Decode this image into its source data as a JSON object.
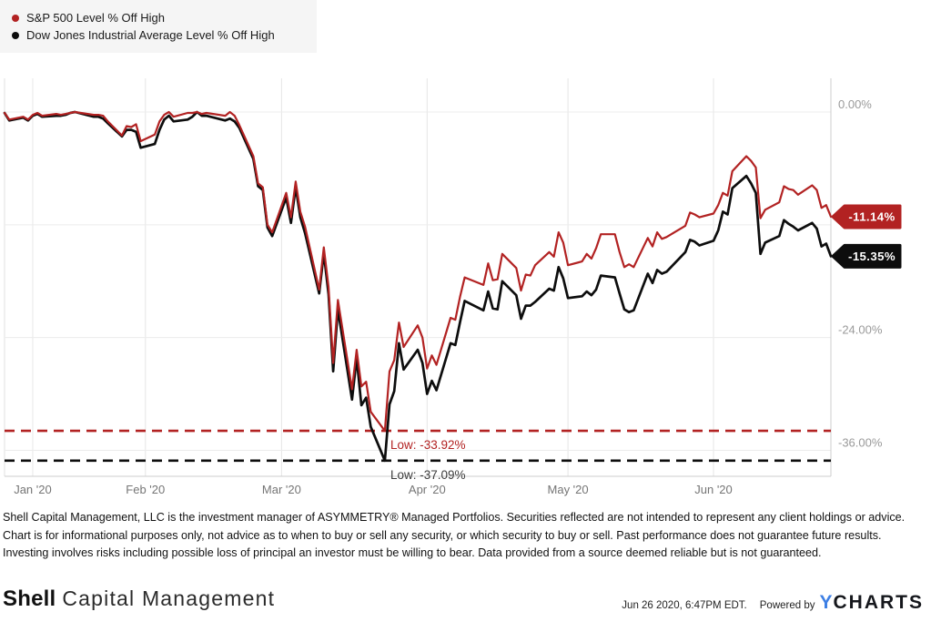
{
  "chart": {
    "legend": [
      {
        "id": "sp500",
        "label": "S&P 500 Level % Off High",
        "color": "#b22222"
      },
      {
        "id": "dow",
        "label": "Dow Jones Industrial Average Level % Off High",
        "color": "#0d0d0d"
      }
    ],
    "end_badges": [
      {
        "id": "sp500",
        "label": "-11.14%",
        "value": -11.14,
        "color": "#b22222"
      },
      {
        "id": "dow",
        "label": "-15.35%",
        "value": -15.35,
        "color": "#0d0d0d"
      }
    ],
    "low_lines": [
      {
        "id": "sp500",
        "label": "Low: -33.92%",
        "value": -33.92,
        "color": "#b22222",
        "text_color": "#b22222"
      },
      {
        "id": "dow",
        "label": "Low: -37.09%",
        "value": -37.09,
        "color": "#0d0d0d",
        "text_color": "#3c3c3c"
      }
    ]
  },
  "chart_data": {
    "type": "line",
    "title": "",
    "xlabel": "",
    "ylabel": "% Off High",
    "x_domain": [
      "2020-01-02",
      "2020-06-26"
    ],
    "ylim": [
      -42,
      3.4
    ],
    "grid": true,
    "legend_position": "top-left",
    "y_ticks": [
      {
        "value": 0,
        "label": "0.00%"
      },
      {
        "value": -12,
        "label": ""
      },
      {
        "value": -24,
        "label": "-24.00%"
      },
      {
        "value": -36,
        "label": "-36.00%"
      }
    ],
    "x_ticks": [
      {
        "date": "2020-01-08",
        "label": "Jan '20"
      },
      {
        "date": "2020-02-01",
        "label": "Feb '20"
      },
      {
        "date": "2020-03-01",
        "label": "Mar '20"
      },
      {
        "date": "2020-04-01",
        "label": "Apr '20"
      },
      {
        "date": "2020-05-01",
        "label": "May '20"
      },
      {
        "date": "2020-06-01",
        "label": "Jun '20"
      }
    ],
    "series": [
      {
        "id": "sp500",
        "name": "S&P 500 Level % Off High",
        "color": "#b22222",
        "points": [
          [
            "2020-01-02",
            -0.1
          ],
          [
            "2020-01-03",
            -0.8
          ],
          [
            "2020-01-06",
            -0.5
          ],
          [
            "2020-01-07",
            -0.8
          ],
          [
            "2020-01-08",
            -0.3
          ],
          [
            "2020-01-09",
            -0.1
          ],
          [
            "2020-01-10",
            -0.4
          ],
          [
            "2020-01-13",
            -0.2
          ],
          [
            "2020-01-14",
            -0.3
          ],
          [
            "2020-01-15",
            -0.2
          ],
          [
            "2020-01-16",
            -0.1
          ],
          [
            "2020-01-17",
            0
          ],
          [
            "2020-01-21",
            -0.3
          ],
          [
            "2020-01-22",
            -0.3
          ],
          [
            "2020-01-23",
            -0.4
          ],
          [
            "2020-01-24",
            -1.0
          ],
          [
            "2020-01-27",
            -2.5
          ],
          [
            "2020-01-28",
            -1.5
          ],
          [
            "2020-01-29",
            -1.6
          ],
          [
            "2020-01-30",
            -1.3
          ],
          [
            "2020-01-31",
            -3.1
          ],
          [
            "2020-02-03",
            -2.4
          ],
          [
            "2020-02-04",
            -1.0
          ],
          [
            "2020-02-05",
            -0.3
          ],
          [
            "2020-02-06",
            0
          ],
          [
            "2020-02-07",
            -0.5
          ],
          [
            "2020-02-10",
            -0.1
          ],
          [
            "2020-02-11",
            -0.1
          ],
          [
            "2020-02-12",
            0
          ],
          [
            "2020-02-13",
            -0.2
          ],
          [
            "2020-02-14",
            -0.1
          ],
          [
            "2020-02-18",
            -0.4
          ],
          [
            "2020-02-19",
            0
          ],
          [
            "2020-02-20",
            -0.4
          ],
          [
            "2020-02-21",
            -1.4
          ],
          [
            "2020-02-24",
            -4.7
          ],
          [
            "2020-02-25",
            -7.6
          ],
          [
            "2020-02-26",
            -8.0
          ],
          [
            "2020-02-27",
            -12.0
          ],
          [
            "2020-02-28",
            -12.8
          ],
          [
            "2020-03-02",
            -8.6
          ],
          [
            "2020-03-03",
            -11.2
          ],
          [
            "2020-03-04",
            -7.4
          ],
          [
            "2020-03-05",
            -10.6
          ],
          [
            "2020-03-06",
            -12.2
          ],
          [
            "2020-03-09",
            -18.9
          ],
          [
            "2020-03-10",
            -14.4
          ],
          [
            "2020-03-11",
            -18.6
          ],
          [
            "2020-03-12",
            -26.7
          ],
          [
            "2020-03-13",
            -20.0
          ],
          [
            "2020-03-16",
            -29.5
          ],
          [
            "2020-03-17",
            -25.3
          ],
          [
            "2020-03-18",
            -29.2
          ],
          [
            "2020-03-19",
            -28.7
          ],
          [
            "2020-03-20",
            -31.9
          ],
          [
            "2020-03-23",
            -33.92
          ],
          [
            "2020-03-24",
            -27.6
          ],
          [
            "2020-03-25",
            -26.4
          ],
          [
            "2020-03-26",
            -22.4
          ],
          [
            "2020-03-27",
            -25.0
          ],
          [
            "2020-03-30",
            -22.7
          ],
          [
            "2020-03-31",
            -24.0
          ],
          [
            "2020-04-01",
            -27.3
          ],
          [
            "2020-04-02",
            -25.9
          ],
          [
            "2020-04-03",
            -26.9
          ],
          [
            "2020-04-06",
            -21.9
          ],
          [
            "2020-04-07",
            -22.1
          ],
          [
            "2020-04-08",
            -19.7
          ],
          [
            "2020-04-09",
            -17.6
          ],
          [
            "2020-04-13",
            -18.4
          ],
          [
            "2020-04-14",
            -16.1
          ],
          [
            "2020-04-15",
            -17.9
          ],
          [
            "2020-04-16",
            -17.8
          ],
          [
            "2020-04-17",
            -15.1
          ],
          [
            "2020-04-20",
            -16.6
          ],
          [
            "2020-04-21",
            -19.0
          ],
          [
            "2020-04-22",
            -17.3
          ],
          [
            "2020-04-23",
            -17.4
          ],
          [
            "2020-04-24",
            -16.3
          ],
          [
            "2020-04-27",
            -14.9
          ],
          [
            "2020-04-28",
            -15.4
          ],
          [
            "2020-04-29",
            -12.8
          ],
          [
            "2020-04-30",
            -13.9
          ],
          [
            "2020-05-01",
            -16.3
          ],
          [
            "2020-05-04",
            -15.9
          ],
          [
            "2020-05-05",
            -15.1
          ],
          [
            "2020-05-06",
            -15.6
          ],
          [
            "2020-05-07",
            -14.5
          ],
          [
            "2020-05-08",
            -13.0
          ],
          [
            "2020-05-11",
            -13.0
          ],
          [
            "2020-05-12",
            -14.9
          ],
          [
            "2020-05-13",
            -16.5
          ],
          [
            "2020-05-14",
            -16.2
          ],
          [
            "2020-05-15",
            -16.5
          ],
          [
            "2020-05-18",
            -13.4
          ],
          [
            "2020-05-19",
            -14.3
          ],
          [
            "2020-05-20",
            -12.8
          ],
          [
            "2020-05-21",
            -13.5
          ],
          [
            "2020-05-22",
            -13.3
          ],
          [
            "2020-05-26",
            -12.1
          ],
          [
            "2020-05-27",
            -10.7
          ],
          [
            "2020-05-28",
            -10.9
          ],
          [
            "2020-05-29",
            -11.2
          ],
          [
            "2020-06-01",
            -10.8
          ],
          [
            "2020-06-02",
            -9.9
          ],
          [
            "2020-06-03",
            -8.6
          ],
          [
            "2020-06-04",
            -8.9
          ],
          [
            "2020-06-05",
            -6.3
          ],
          [
            "2020-06-08",
            -4.7
          ],
          [
            "2020-06-09",
            -5.2
          ],
          [
            "2020-06-10",
            -5.9
          ],
          [
            "2020-06-11",
            -11.3
          ],
          [
            "2020-06-12",
            -10.4
          ],
          [
            "2020-06-15",
            -9.6
          ],
          [
            "2020-06-16",
            -7.9
          ],
          [
            "2020-06-17",
            -8.2
          ],
          [
            "2020-06-18",
            -8.3
          ],
          [
            "2020-06-19",
            -8.8
          ],
          [
            "2020-06-22",
            -7.8
          ],
          [
            "2020-06-23",
            -8.3
          ],
          [
            "2020-06-24",
            -10.2
          ],
          [
            "2020-06-25",
            -9.9
          ],
          [
            "2020-06-26",
            -11.14
          ]
        ]
      },
      {
        "id": "dow",
        "name": "Dow Jones Industrial Average Level % Off High",
        "color": "#0d0d0d",
        "points": [
          [
            "2020-01-02",
            -0.1
          ],
          [
            "2020-01-03",
            -0.9
          ],
          [
            "2020-01-06",
            -0.6
          ],
          [
            "2020-01-07",
            -0.9
          ],
          [
            "2020-01-08",
            -0.4
          ],
          [
            "2020-01-09",
            -0.2
          ],
          [
            "2020-01-10",
            -0.5
          ],
          [
            "2020-01-13",
            -0.4
          ],
          [
            "2020-01-14",
            -0.4
          ],
          [
            "2020-01-15",
            -0.3
          ],
          [
            "2020-01-16",
            -0.1
          ],
          [
            "2020-01-17",
            0
          ],
          [
            "2020-01-21",
            -0.5
          ],
          [
            "2020-01-22",
            -0.5
          ],
          [
            "2020-01-23",
            -0.7
          ],
          [
            "2020-01-24",
            -1.2
          ],
          [
            "2020-01-27",
            -2.6
          ],
          [
            "2020-01-28",
            -1.9
          ],
          [
            "2020-01-29",
            -1.9
          ],
          [
            "2020-01-30",
            -2.1
          ],
          [
            "2020-01-31",
            -3.8
          ],
          [
            "2020-02-03",
            -3.4
          ],
          [
            "2020-02-04",
            -1.9
          ],
          [
            "2020-02-05",
            -0.8
          ],
          [
            "2020-02-06",
            -0.4
          ],
          [
            "2020-02-07",
            -1.0
          ],
          [
            "2020-02-10",
            -0.8
          ],
          [
            "2020-02-11",
            -0.5
          ],
          [
            "2020-02-12",
            0
          ],
          [
            "2020-02-13",
            -0.4
          ],
          [
            "2020-02-14",
            -0.4
          ],
          [
            "2020-02-18",
            -0.9
          ],
          [
            "2020-02-19",
            -0.7
          ],
          [
            "2020-02-20",
            -1.0
          ],
          [
            "2020-02-21",
            -1.7
          ],
          [
            "2020-02-24",
            -5.0
          ],
          [
            "2020-02-25",
            -7.9
          ],
          [
            "2020-02-26",
            -8.3
          ],
          [
            "2020-02-27",
            -12.3
          ],
          [
            "2020-02-28",
            -13.2
          ],
          [
            "2020-03-02",
            -9.1
          ],
          [
            "2020-03-03",
            -11.8
          ],
          [
            "2020-03-04",
            -8.0
          ],
          [
            "2020-03-05",
            -11.2
          ],
          [
            "2020-03-06",
            -12.9
          ],
          [
            "2020-03-09",
            -19.3
          ],
          [
            "2020-03-10",
            -15.0
          ],
          [
            "2020-03-11",
            -19.4
          ],
          [
            "2020-03-12",
            -27.6
          ],
          [
            "2020-03-13",
            -21.0
          ],
          [
            "2020-03-16",
            -30.6
          ],
          [
            "2020-03-17",
            -26.2
          ],
          [
            "2020-03-18",
            -31.2
          ],
          [
            "2020-03-19",
            -30.4
          ],
          [
            "2020-03-20",
            -33.5
          ],
          [
            "2020-03-23",
            -37.09
          ],
          [
            "2020-03-24",
            -31.1
          ],
          [
            "2020-03-25",
            -29.7
          ],
          [
            "2020-03-26",
            -24.6
          ],
          [
            "2020-03-27",
            -27.4
          ],
          [
            "2020-03-30",
            -25.3
          ],
          [
            "2020-03-31",
            -26.7
          ],
          [
            "2020-04-01",
            -30.0
          ],
          [
            "2020-04-02",
            -28.6
          ],
          [
            "2020-04-03",
            -29.6
          ],
          [
            "2020-04-06",
            -24.6
          ],
          [
            "2020-04-07",
            -24.8
          ],
          [
            "2020-04-08",
            -22.4
          ],
          [
            "2020-04-09",
            -20.1
          ],
          [
            "2020-04-13",
            -21.1
          ],
          [
            "2020-04-14",
            -19.1
          ],
          [
            "2020-04-15",
            -20.9
          ],
          [
            "2020-04-16",
            -21.0
          ],
          [
            "2020-04-17",
            -18.0
          ],
          [
            "2020-04-20",
            -19.5
          ],
          [
            "2020-04-21",
            -22.0
          ],
          [
            "2020-04-22",
            -20.6
          ],
          [
            "2020-04-23",
            -20.6
          ],
          [
            "2020-04-24",
            -20.2
          ],
          [
            "2020-04-27",
            -18.8
          ],
          [
            "2020-04-28",
            -19.0
          ],
          [
            "2020-04-29",
            -16.5
          ],
          [
            "2020-04-30",
            -17.7
          ],
          [
            "2020-05-01",
            -19.8
          ],
          [
            "2020-05-04",
            -19.6
          ],
          [
            "2020-05-05",
            -19.1
          ],
          [
            "2020-05-06",
            -19.5
          ],
          [
            "2020-05-07",
            -18.9
          ],
          [
            "2020-05-08",
            -17.4
          ],
          [
            "2020-05-11",
            -17.6
          ],
          [
            "2020-05-12",
            -19.3
          ],
          [
            "2020-05-13",
            -21.0
          ],
          [
            "2020-05-14",
            -21.3
          ],
          [
            "2020-05-15",
            -21.1
          ],
          [
            "2020-05-18",
            -17.2
          ],
          [
            "2020-05-19",
            -18.2
          ],
          [
            "2020-05-20",
            -16.8
          ],
          [
            "2020-05-21",
            -17.2
          ],
          [
            "2020-05-22",
            -17.0
          ],
          [
            "2020-05-26",
            -14.9
          ],
          [
            "2020-05-27",
            -13.6
          ],
          [
            "2020-05-28",
            -13.8
          ],
          [
            "2020-05-29",
            -14.2
          ],
          [
            "2020-06-01",
            -13.7
          ],
          [
            "2020-06-02",
            -12.6
          ],
          [
            "2020-06-03",
            -10.6
          ],
          [
            "2020-06-04",
            -10.9
          ],
          [
            "2020-06-05",
            -8.1
          ],
          [
            "2020-06-08",
            -6.8
          ],
          [
            "2020-06-09",
            -7.6
          ],
          [
            "2020-06-10",
            -8.6
          ],
          [
            "2020-06-11",
            -15.1
          ],
          [
            "2020-06-12",
            -13.9
          ],
          [
            "2020-06-15",
            -13.2
          ],
          [
            "2020-06-16",
            -11.5
          ],
          [
            "2020-06-17",
            -11.9
          ],
          [
            "2020-06-18",
            -12.2
          ],
          [
            "2020-06-19",
            -12.6
          ],
          [
            "2020-06-22",
            -11.8
          ],
          [
            "2020-06-23",
            -12.4
          ],
          [
            "2020-06-24",
            -14.3
          ],
          [
            "2020-06-25",
            -14.0
          ],
          [
            "2020-06-26",
            -15.35
          ]
        ]
      }
    ]
  },
  "disclaimer": "Shell Capital Management, LLC is the investment manager of ASYMMETRY® Managed Portfolios. Securities reflected are not intended to represent any client holdings or advice. Chart is for informational purposes only, not advice as to when to buy or sell any security, or which security to buy or sell. Past performance does not guarantee future results. Investing involves risks including possible loss of principal an investor must be willing to bear. Data provided from a source deemed reliable but is not guaranteed.",
  "footer": {
    "brand_bold": "Shell",
    "brand_rest": "Capital Management",
    "timestamp": "Jun 26 2020, 6:47PM EDT.",
    "powered_by": "Powered by",
    "logo_y": "Y",
    "logo_charts": "CHARTS",
    "logo_y_color": "#3d7fe4",
    "logo_charts_color": "#15171c"
  }
}
